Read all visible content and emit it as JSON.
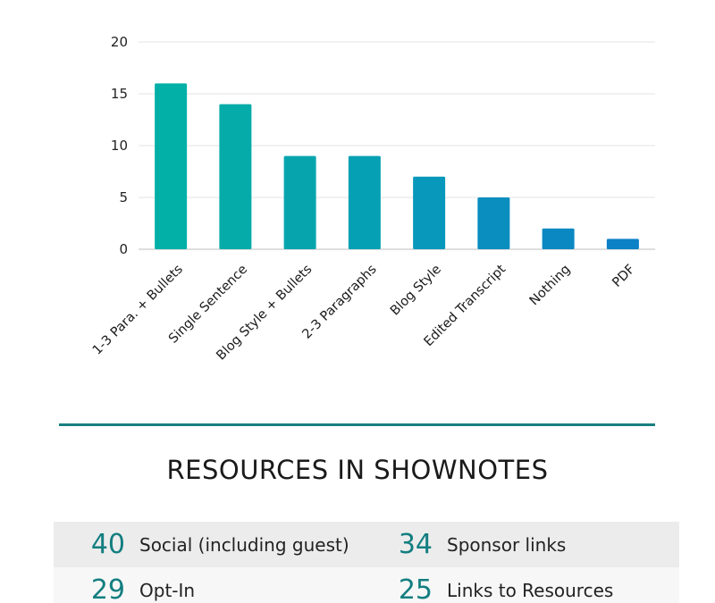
{
  "chart_data": {
    "type": "bar",
    "categories": [
      "1-3 Para. + Bullets",
      "Single Sentence",
      "Blog Style + Bullets",
      "2-3 Paragraphs",
      "Blog Style",
      "Edited Transcript",
      "Nothing",
      "PDF"
    ],
    "values": [
      16,
      14,
      9,
      9,
      7,
      5,
      2,
      1
    ],
    "yticks": [
      "0",
      "5",
      "10",
      "15",
      "20"
    ],
    "ylim": [
      0,
      20
    ],
    "grid": true,
    "bar_colors": [
      "#02b0a8",
      "#05aba9",
      "#06a5ae",
      "#05a0b4",
      "#0898bb",
      "#098ebf",
      "#0a88c2",
      "#0c81c6"
    ]
  },
  "resources": {
    "title": "RESOURCES IN SHOWNOTES",
    "rows": [
      [
        {
          "count": "40",
          "label": "Social (including guest)"
        },
        {
          "count": "34",
          "label": "Sponsor links"
        }
      ],
      [
        {
          "count": "29",
          "label": "Opt-In"
        },
        {
          "count": "25",
          "label": "Links to Resources"
        }
      ]
    ]
  },
  "colors": {
    "accent": "#137e80",
    "divider": "#1a7e80"
  }
}
